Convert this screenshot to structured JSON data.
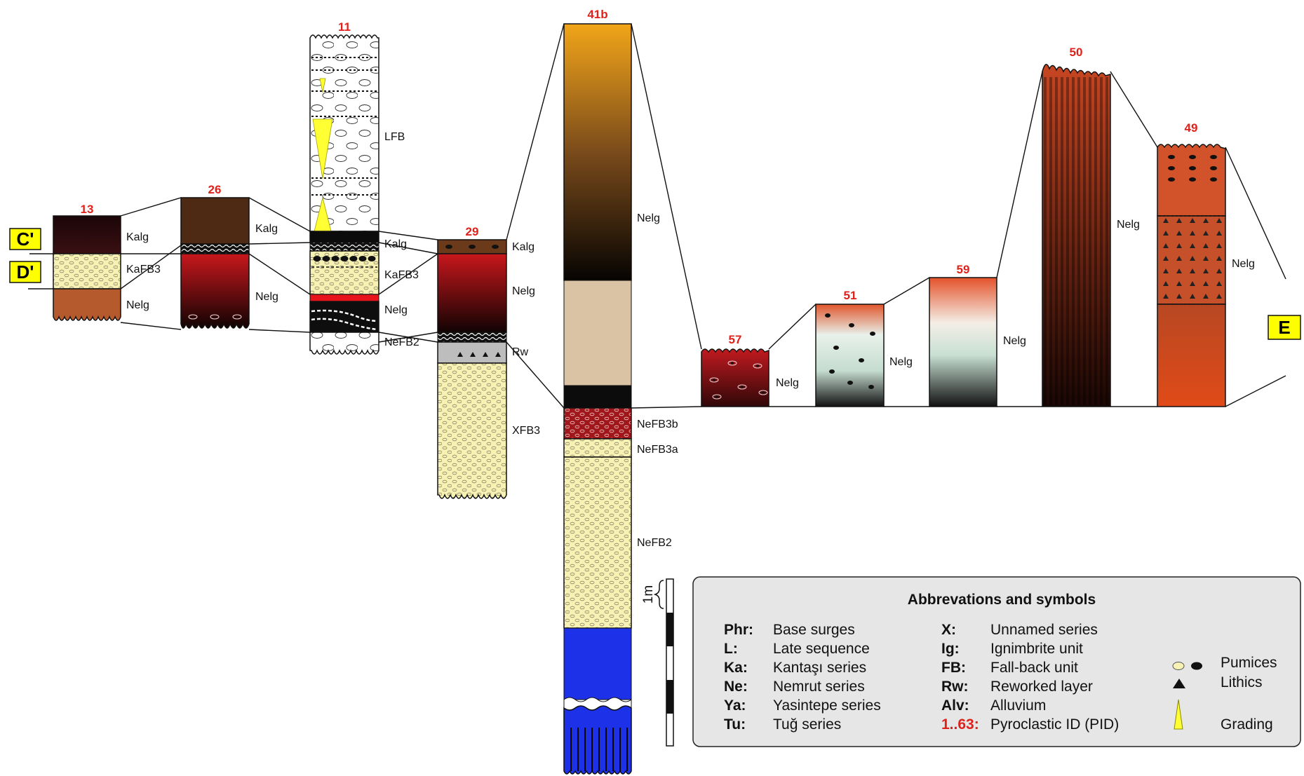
{
  "section_markers": [
    "C'",
    "D'",
    "E"
  ],
  "columns": [
    {
      "pid": "13",
      "units": [
        "Kalg",
        "KaFB3",
        "Nelg"
      ]
    },
    {
      "pid": "26",
      "units": [
        "Kalg",
        "Nelg"
      ]
    },
    {
      "pid": "11",
      "units": [
        "LFB",
        "Kalg",
        "KaFB3",
        "Nelg",
        "NeFB2"
      ]
    },
    {
      "pid": "29",
      "units": [
        "Kalg",
        "Nelg",
        "Rw",
        "XFB3"
      ]
    },
    {
      "pid": "41b",
      "units": [
        "Nelg",
        "NeFB3b",
        "NeFB3a",
        "NeFB2"
      ]
    },
    {
      "pid": "57",
      "units": [
        "Nelg"
      ]
    },
    {
      "pid": "51",
      "units": [
        "Nelg"
      ]
    },
    {
      "pid": "59",
      "units": [
        "Nelg"
      ]
    },
    {
      "pid": "50",
      "units": [
        "Nelg"
      ]
    },
    {
      "pid": "49",
      "units": [
        "Nelg"
      ]
    }
  ],
  "scale": {
    "label": "1m"
  },
  "legend": {
    "title": "Abbrevations and symbols",
    "left": [
      {
        "abbr": "Phr:",
        "desc": "Base surges"
      },
      {
        "abbr": "L:",
        "desc": "Late sequence"
      },
      {
        "abbr": "Ka:",
        "desc": "Kantaşı series"
      },
      {
        "abbr": "Ne:",
        "desc": "Nemrut series"
      },
      {
        "abbr": "Ya:",
        "desc": "Yasintepe series"
      },
      {
        "abbr": "Tu:",
        "desc": "Tuğ series"
      }
    ],
    "right": [
      {
        "abbr": "X:",
        "desc": "Unnamed series"
      },
      {
        "abbr": "Ig:",
        "desc": "Ignimbrite unit"
      },
      {
        "abbr": "FB:",
        "desc": "Fall-back unit"
      },
      {
        "abbr": "Rw:",
        "desc": "Reworked layer"
      },
      {
        "abbr": "Alv:",
        "desc": "Alluvium"
      },
      {
        "abbr": "1..63:",
        "desc": "Pyroclastic ID (PID)",
        "highlight": true
      }
    ],
    "symbols": [
      {
        "icon": "pumice-icon",
        "label": "Pumices"
      },
      {
        "icon": "lithic-icon",
        "label": "Lithics"
      },
      {
        "icon": "grading-icon",
        "label": "Grading"
      }
    ]
  },
  "colors": {
    "pid_label": "#e0211b",
    "marker_fill": "#ffff00",
    "pumice_fill": "#f7f2b4"
  }
}
